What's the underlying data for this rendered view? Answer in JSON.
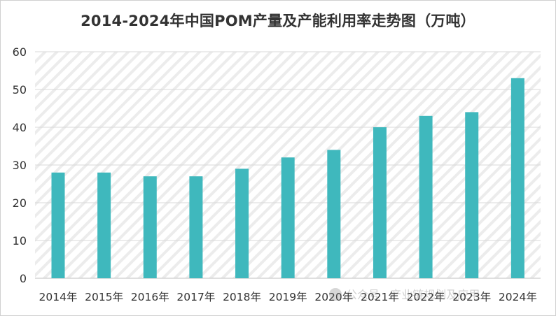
{
  "chart_data": {
    "type": "bar",
    "title": "2014-2024年中国POM产量及产能利用率走势图（万吨）",
    "categories": [
      "2014年",
      "2015年",
      "2016年",
      "2017年",
      "2018年",
      "2019年",
      "2020年",
      "2021年",
      "2022年",
      "2023年",
      "2024年"
    ],
    "values": [
      28,
      28,
      27,
      27,
      29,
      32,
      34,
      40,
      43,
      44,
      53
    ],
    "ylim": [
      0,
      60
    ],
    "yticks": [
      0,
      10,
      20,
      30,
      40,
      50,
      60
    ],
    "grid": true,
    "bar_color": "#3fb8bd",
    "plot_pattern": "diagonal-stripes"
  },
  "watermark": "公众号 · 产业链规划及应用"
}
